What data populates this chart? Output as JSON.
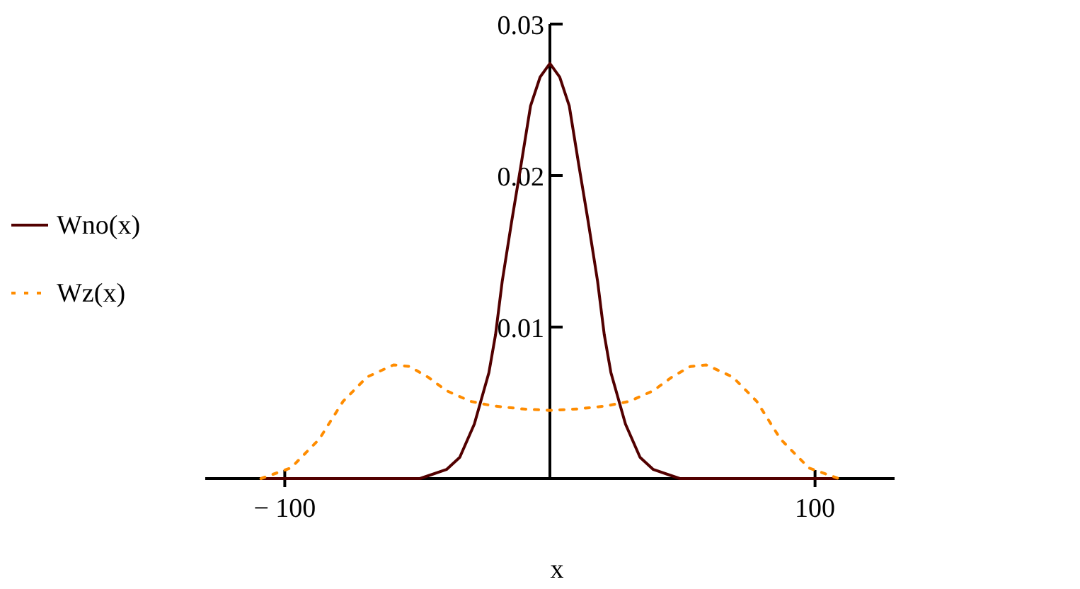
{
  "chart_data": {
    "type": "line",
    "xlabel": "x",
    "xlim": [
      -130,
      130
    ],
    "ylim": [
      0,
      0.03
    ],
    "xticks": [
      {
        "value": -100,
        "label": "− 100"
      },
      100
    ],
    "yticks": [
      0.01,
      0.02,
      0.03
    ],
    "legend": "left",
    "grid": false,
    "series": [
      {
        "name": "Wno(x)",
        "color": "#520000",
        "line_style": "solid",
        "x": [
          -108,
          -49,
          -39,
          -34,
          -28.5,
          -23,
          -20.5,
          -18,
          -14.4,
          -10.8,
          -7.3,
          -3.7,
          0,
          3.7,
          7.3,
          10.8,
          14.4,
          18,
          20.5,
          23,
          28.5,
          34,
          39,
          49,
          108
        ],
        "values": [
          0,
          0,
          0.0006,
          0.0014,
          0.0036,
          0.007,
          0.0095,
          0.013,
          0.017,
          0.0208,
          0.0246,
          0.0265,
          0.0274,
          0.0265,
          0.0246,
          0.0208,
          0.017,
          0.013,
          0.0095,
          0.007,
          0.0036,
          0.0014,
          0.0006,
          0,
          0
        ]
      },
      {
        "name": "Wz(x)",
        "color": "#ff8c00",
        "line_style": "dotted",
        "x": [
          -109,
          -97.7,
          -87,
          -78,
          -69,
          -59,
          -53,
          -46,
          -39,
          -30,
          -21.5,
          -10.8,
          0,
          10.8,
          21.5,
          30,
          39,
          46,
          53,
          59,
          69,
          78,
          87,
          97.7,
          109
        ],
        "values": [
          0,
          0.0007,
          0.0026,
          0.0051,
          0.0067,
          0.0075,
          0.0074,
          0.0067,
          0.0058,
          0.0051,
          0.0048,
          0.0046,
          0.0045,
          0.0046,
          0.0048,
          0.0051,
          0.0058,
          0.0067,
          0.0074,
          0.0075,
          0.0067,
          0.0051,
          0.0026,
          0.0007,
          0
        ]
      }
    ]
  }
}
